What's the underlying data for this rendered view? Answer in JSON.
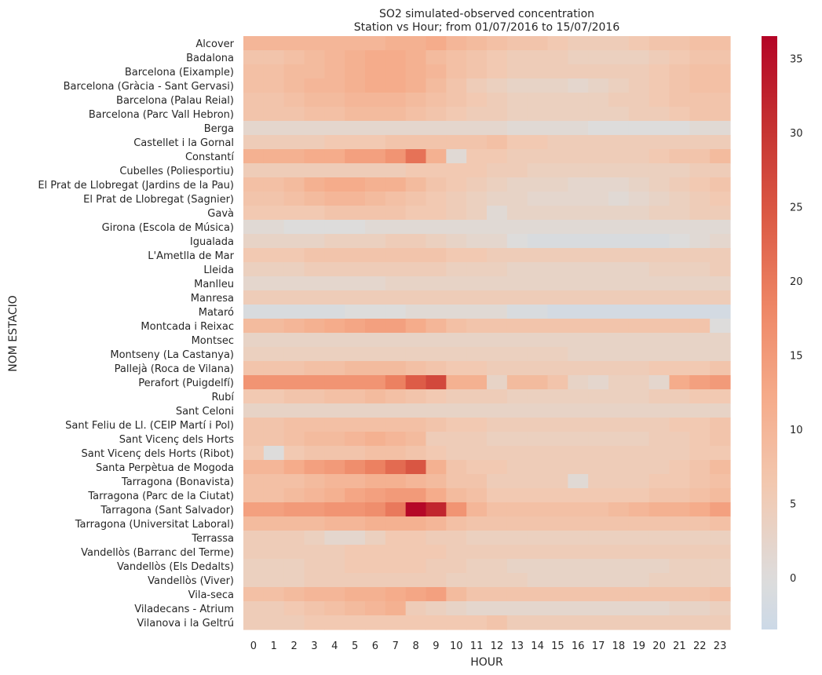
{
  "chart_data": {
    "type": "heatmap",
    "title": "SO2 simulated-observed concentration",
    "subtitle": "Station vs Hour; from 01/07/2016 to 15/07/2016",
    "xlabel": "HOUR",
    "ylabel": "NOM ESTACIO",
    "x": [
      0,
      1,
      2,
      3,
      4,
      5,
      6,
      7,
      8,
      9,
      10,
      11,
      12,
      13,
      14,
      15,
      16,
      17,
      18,
      19,
      20,
      21,
      22,
      23
    ],
    "stations": [
      "Alcover",
      "Badalona",
      "Barcelona (Eixample)",
      "Barcelona (Gràcia - Sant Gervasi)",
      "Barcelona (Palau Reial)",
      "Barcelona (Parc Vall Hebron)",
      "Berga",
      "Castellet i la Gornal",
      "Constantí",
      "Cubelles (Poliesportiu)",
      "El Prat de Llobregat (Jardins de la Pau)",
      "El Prat de Llobregat (Sagnier)",
      "Gavà",
      "Girona (Escola de Música)",
      "Igualada",
      "L'Ametlla de Mar",
      "Lleida",
      "Manlleu",
      "Manresa",
      "Mataró",
      "Montcada i Reixac",
      "Montsec",
      "Montseny (La Castanya)",
      "Pallejà (Roca de Vilana)",
      "Perafort (Puigdelfí)",
      "Rubí",
      "Sant Celoni",
      "Sant Feliu de Ll. (CEIP Martí i Pol)",
      "Sant Vicenç dels Horts",
      "Sant Vicenç dels Horts (Ribot)",
      "Santa Perpètua de Mogoda",
      "Tarragona (Bonavista)",
      "Tarragona (Parc de la Ciutat)",
      "Tarragona (Sant Salvador)",
      "Tarragona (Universitat Laboral)",
      "Terrassa",
      "Vandellòs (Barranc del Terme)",
      "Vandellòs (Els Dedalts)",
      "Vandellòs (Viver)",
      "Vila-seca",
      "Viladecans - Atrium",
      "Vilanova i la Geltrú"
    ],
    "values": [
      [
        10,
        10,
        10,
        10,
        10,
        10,
        10,
        11,
        11,
        12,
        10,
        9,
        8,
        7,
        7,
        6,
        5,
        5,
        5,
        6,
        7,
        7,
        8,
        8
      ],
      [
        7,
        7,
        8,
        9,
        10,
        11,
        12,
        12,
        11,
        9,
        8,
        7,
        6,
        5,
        5,
        5,
        4,
        4,
        4,
        4,
        5,
        6,
        7,
        7
      ],
      [
        8,
        8,
        9,
        9,
        10,
        11,
        12,
        12,
        11,
        10,
        8,
        7,
        6,
        5,
        5,
        5,
        5,
        5,
        5,
        5,
        6,
        7,
        8,
        8
      ],
      [
        8,
        8,
        9,
        10,
        10,
        11,
        12,
        12,
        11,
        9,
        7,
        5,
        4,
        3,
        3,
        3,
        2,
        3,
        4,
        5,
        6,
        7,
        8,
        8
      ],
      [
        7,
        7,
        8,
        9,
        9,
        10,
        10,
        10,
        9,
        8,
        7,
        6,
        5,
        4,
        4,
        4,
        4,
        4,
        5,
        5,
        6,
        7,
        7,
        7
      ],
      [
        7,
        7,
        7,
        8,
        8,
        9,
        9,
        9,
        8,
        7,
        6,
        5,
        5,
        4,
        4,
        4,
        4,
        4,
        4,
        5,
        5,
        6,
        7,
        7
      ],
      [
        2,
        2,
        2,
        2,
        2,
        2,
        2,
        2,
        2,
        2,
        2,
        2,
        2,
        1,
        1,
        1,
        1,
        0,
        0,
        0,
        0,
        0,
        1,
        1
      ],
      [
        5,
        5,
        5,
        5,
        6,
        6,
        6,
        7,
        7,
        7,
        7,
        7,
        8,
        6,
        6,
        5,
        5,
        5,
        5,
        5,
        5,
        5,
        5,
        5
      ],
      [
        11,
        11,
        11,
        12,
        12,
        14,
        14,
        16,
        21,
        11,
        1,
        6,
        6,
        5,
        5,
        5,
        5,
        5,
        5,
        5,
        6,
        7,
        7,
        9
      ],
      [
        5,
        5,
        5,
        5,
        5,
        5,
        5,
        5,
        6,
        6,
        6,
        6,
        5,
        5,
        4,
        4,
        4,
        4,
        4,
        4,
        4,
        4,
        5,
        5
      ],
      [
        8,
        8,
        9,
        11,
        12,
        12,
        11,
        11,
        9,
        7,
        6,
        5,
        4,
        3,
        3,
        3,
        2,
        2,
        2,
        3,
        4,
        5,
        6,
        7
      ],
      [
        7,
        7,
        8,
        9,
        10,
        10,
        9,
        8,
        7,
        6,
        5,
        4,
        3,
        3,
        2,
        2,
        2,
        2,
        1,
        2,
        3,
        4,
        5,
        6
      ],
      [
        6,
        6,
        6,
        6,
        7,
        7,
        7,
        7,
        6,
        6,
        5,
        4,
        1,
        3,
        3,
        3,
        3,
        3,
        3,
        3,
        4,
        4,
        5,
        5
      ],
      [
        1,
        1,
        0,
        0,
        0,
        0,
        1,
        1,
        1,
        1,
        1,
        1,
        1,
        1,
        1,
        1,
        1,
        1,
        1,
        1,
        1,
        1,
        1,
        1
      ],
      [
        3,
        3,
        3,
        3,
        4,
        4,
        4,
        5,
        5,
        4,
        3,
        2,
        2,
        0,
        -1,
        -1,
        -1,
        -1,
        -1,
        -1,
        -1,
        0,
        1,
        2
      ],
      [
        6,
        6,
        6,
        7,
        7,
        7,
        7,
        7,
        7,
        7,
        6,
        6,
        5,
        5,
        5,
        5,
        5,
        5,
        5,
        5,
        5,
        5,
        5,
        5
      ],
      [
        4,
        4,
        4,
        5,
        5,
        5,
        5,
        5,
        5,
        5,
        4,
        4,
        4,
        3,
        3,
        3,
        3,
        3,
        3,
        3,
        4,
        4,
        4,
        5
      ],
      [
        2,
        2,
        2,
        2,
        2,
        2,
        2,
        3,
        3,
        3,
        3,
        3,
        3,
        3,
        3,
        3,
        3,
        3,
        3,
        3,
        3,
        3,
        3,
        3
      ],
      [
        5,
        5,
        5,
        5,
        5,
        5,
        5,
        5,
        5,
        5,
        5,
        5,
        5,
        5,
        5,
        5,
        5,
        5,
        5,
        5,
        5,
        5,
        5,
        5
      ],
      [
        -1,
        -1,
        -1,
        -1,
        -1,
        0,
        0,
        0,
        1,
        1,
        1,
        1,
        1,
        -1,
        -1,
        -2,
        -2,
        -2,
        -2,
        -2,
        -2,
        -2,
        -2,
        -2
      ],
      [
        9,
        9,
        10,
        11,
        12,
        13,
        14,
        14,
        12,
        10,
        8,
        7,
        7,
        7,
        7,
        7,
        7,
        7,
        7,
        7,
        7,
        7,
        7,
        0
      ],
      [
        3,
        3,
        3,
        3,
        3,
        3,
        3,
        3,
        3,
        3,
        3,
        3,
        3,
        3,
        3,
        3,
        3,
        3,
        3,
        3,
        3,
        3,
        3,
        3
      ],
      [
        4,
        4,
        4,
        4,
        4,
        4,
        4,
        4,
        4,
        4,
        4,
        4,
        4,
        4,
        4,
        4,
        3,
        3,
        3,
        3,
        3,
        3,
        3,
        3
      ],
      [
        7,
        7,
        7,
        8,
        8,
        9,
        9,
        9,
        8,
        7,
        6,
        6,
        5,
        5,
        5,
        5,
        5,
        5,
        5,
        5,
        6,
        6,
        6,
        7
      ],
      [
        16,
        16,
        16,
        16,
        16,
        16,
        16,
        19,
        24,
        27,
        11,
        11,
        3,
        9,
        9,
        7,
        3,
        2,
        4,
        4,
        2,
        12,
        14,
        15
      ],
      [
        6,
        6,
        7,
        7,
        8,
        8,
        9,
        8,
        7,
        6,
        5,
        5,
        5,
        4,
        4,
        4,
        4,
        4,
        4,
        4,
        5,
        5,
        6,
        6
      ],
      [
        3,
        3,
        3,
        3,
        3,
        3,
        3,
        3,
        3,
        3,
        3,
        3,
        3,
        3,
        3,
        3,
        3,
        3,
        3,
        3,
        3,
        3,
        3,
        3
      ],
      [
        7,
        7,
        8,
        8,
        8,
        8,
        8,
        8,
        8,
        7,
        6,
        6,
        5,
        5,
        5,
        5,
        5,
        5,
        5,
        5,
        5,
        6,
        6,
        7
      ],
      [
        7,
        7,
        8,
        9,
        9,
        10,
        11,
        10,
        9,
        5,
        5,
        5,
        4,
        4,
        4,
        4,
        4,
        4,
        4,
        4,
        5,
        5,
        6,
        7
      ],
      [
        6,
        0,
        6,
        7,
        7,
        7,
        8,
        8,
        7,
        6,
        5,
        5,
        5,
        5,
        5,
        5,
        5,
        5,
        5,
        5,
        5,
        5,
        6,
        6
      ],
      [
        10,
        10,
        12,
        14,
        15,
        17,
        19,
        22,
        25,
        11,
        7,
        6,
        6,
        5,
        5,
        5,
        5,
        5,
        5,
        5,
        5,
        6,
        7,
        9
      ],
      [
        8,
        8,
        8,
        9,
        10,
        10,
        11,
        11,
        10,
        9,
        7,
        7,
        5,
        5,
        5,
        5,
        1,
        5,
        5,
        5,
        6,
        6,
        7,
        8
      ],
      [
        8,
        8,
        9,
        10,
        11,
        13,
        14,
        15,
        15,
        12,
        9,
        8,
        6,
        6,
        6,
        6,
        6,
        6,
        6,
        6,
        7,
        7,
        8,
        9
      ],
      [
        14,
        14,
        15,
        15,
        16,
        16,
        17,
        20,
        36,
        32,
        16,
        10,
        8,
        8,
        8,
        8,
        8,
        8,
        9,
        10,
        11,
        11,
        12,
        14
      ],
      [
        9,
        9,
        9,
        9,
        10,
        10,
        11,
        11,
        11,
        10,
        8,
        7,
        7,
        7,
        7,
        7,
        7,
        7,
        7,
        7,
        7,
        7,
        7,
        8
      ],
      [
        5,
        5,
        5,
        4,
        2,
        2,
        4,
        6,
        6,
        5,
        5,
        4,
        4,
        4,
        4,
        4,
        4,
        4,
        4,
        4,
        4,
        4,
        4,
        4
      ],
      [
        5,
        5,
        5,
        5,
        5,
        6,
        6,
        6,
        6,
        6,
        5,
        5,
        5,
        5,
        5,
        5,
        5,
        5,
        5,
        5,
        5,
        5,
        5,
        5
      ],
      [
        4,
        4,
        4,
        5,
        5,
        6,
        6,
        6,
        6,
        5,
        5,
        4,
        4,
        3,
        3,
        3,
        3,
        3,
        3,
        3,
        3,
        4,
        4,
        4
      ],
      [
        4,
        4,
        4,
        5,
        5,
        5,
        5,
        5,
        5,
        5,
        4,
        4,
        4,
        4,
        3,
        3,
        3,
        3,
        3,
        3,
        4,
        4,
        4,
        4
      ],
      [
        8,
        8,
        9,
        10,
        10,
        11,
        11,
        12,
        13,
        14,
        9,
        7,
        7,
        7,
        7,
        7,
        7,
        7,
        7,
        7,
        7,
        7,
        7,
        8
      ],
      [
        5,
        5,
        6,
        7,
        8,
        9,
        10,
        11,
        5,
        4,
        3,
        2,
        2,
        2,
        2,
        2,
        2,
        2,
        2,
        2,
        2,
        3,
        3,
        4
      ],
      [
        5,
        5,
        5,
        6,
        6,
        6,
        6,
        6,
        6,
        6,
        6,
        6,
        7,
        5,
        5,
        5,
        5,
        5,
        5,
        5,
        5,
        5,
        5,
        5
      ]
    ],
    "colorbar": {
      "colormap": "coolwarm",
      "center": 0,
      "vmin": -3.5,
      "vmax": 36.5,
      "ticks": [
        0,
        5,
        10,
        15,
        20,
        25,
        30,
        35
      ],
      "neg_color": "#ccd9e7",
      "zero_color": "#dddcdb",
      "pos_colors": [
        "#dddcdb",
        "#f2c9b1",
        "#f5ab8a",
        "#ee8665",
        "#dc5a45",
        "#c53231",
        "#b40426"
      ]
    }
  }
}
